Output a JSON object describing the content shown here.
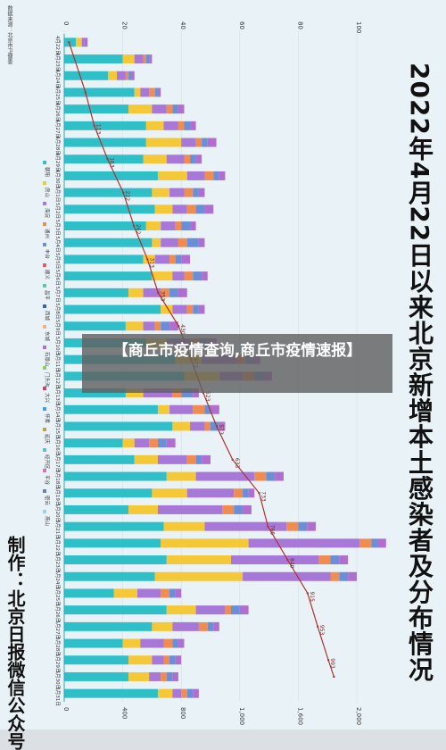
{
  "title": "2022年4月22日以来北京新增本土感染者及分布情况",
  "source": "数据来源：北京市卫健委",
  "maker": "制作：北京日报微信公众号",
  "banner": "【商丘市疫情查询,商丘市疫情速报】",
  "legend": [
    "朝阳",
    "房山",
    "海淀",
    "通州",
    "丰台",
    "顺义",
    "昌平",
    "西城",
    "东城",
    "石景山",
    "门头沟",
    "大兴",
    "怀柔",
    "延庆",
    "经开区",
    "平谷",
    "密云",
    "燕山"
  ],
  "chart_data": {
    "type": "bar",
    "title": "2022年4月22日以来北京新增本土感染者及分布情况",
    "categories": [
      "4月22日",
      "4月23日",
      "4月24日",
      "4月25日",
      "4月26日",
      "4月27日",
      "4月28日",
      "4月29日",
      "4月30日",
      "5月1日",
      "5月2日",
      "5月3日",
      "5月4日",
      "5月5日",
      "5月6日",
      "5月7日",
      "5月8日",
      "5月9日",
      "5月10日",
      "5月11日",
      "5月12日",
      "5月13日",
      "5月14日",
      "5月15日",
      "5月16日",
      "5月17日",
      "5月18日",
      "5月19日",
      "5月20日",
      "5月21日",
      "5月22日",
      "5月23日",
      "5月24日",
      "5月25日",
      "5月26日",
      "5月27日",
      "5月28日",
      "5月29日",
      "5月30日",
      "5月31日"
    ],
    "bar_axis": {
      "ticks": [
        "0",
        "20",
        "40",
        "60",
        "80",
        "100"
      ],
      "ylim": [
        0,
        100
      ]
    },
    "line_axis": {
      "ticks": [
        "0",
        "400",
        "800",
        "1,000",
        "1,600",
        "2,000"
      ]
    },
    "bar_colors": {
      "朝阳": "#2fbfc9",
      "房山": "#f5c838",
      "海淀": "#a878d8",
      "通州": "#f08c50",
      "丰台": "#6a8fd8",
      "顺义": "#e85a6a",
      "昌平": "#5cc8a0",
      "西城": "#3a5fc0",
      "东城": "#ffb070",
      "其他": "#b06fd0"
    },
    "series": [
      {
        "name": "朝阳",
        "values": [
          4,
          20,
          15,
          24,
          22,
          28,
          28,
          27,
          32,
          30,
          31,
          28,
          30,
          27,
          30,
          22,
          33,
          21,
          28,
          38,
          41,
          21,
          32,
          37,
          20,
          24,
          35,
          30,
          22,
          34,
          33,
          35,
          31,
          17,
          35,
          30,
          20,
          22,
          22,
          32
        ]
      },
      {
        "name": "房山",
        "values": [
          2,
          4,
          3,
          2,
          8,
          6,
          12,
          8,
          10,
          6,
          6,
          5,
          3,
          4,
          7,
          5,
          4,
          6,
          7,
          9,
          12,
          6,
          4,
          6,
          4,
          8,
          10,
          12,
          10,
          14,
          30,
          22,
          30,
          8,
          10,
          7,
          6,
          8,
          7,
          5
        ]
      },
      {
        "name": "海淀",
        "values": [
          1,
          3,
          3,
          3,
          5,
          5,
          5,
          6,
          6,
          5,
          5,
          5,
          6,
          5,
          4,
          6,
          5,
          4,
          8,
          12,
          8,
          10,
          8,
          5,
          5,
          10,
          20,
          16,
          22,
          28,
          38,
          30,
          30,
          8,
          10,
          9,
          8,
          4,
          4,
          3
        ]
      },
      {
        "name": "通州",
        "values": [
          0,
          1,
          1,
          2,
          2,
          2,
          2,
          2,
          3,
          3,
          3,
          2,
          3,
          2,
          3,
          3,
          2,
          2,
          3,
          3,
          4,
          3,
          4,
          2,
          3,
          3,
          4,
          3,
          4,
          4,
          4,
          4,
          3,
          3,
          2,
          3,
          3,
          2,
          2,
          2
        ]
      },
      {
        "name": "丰台",
        "values": [
          0,
          1,
          1,
          1,
          2,
          2,
          2,
          2,
          2,
          2,
          3,
          3,
          4,
          2,
          3,
          3,
          2,
          3,
          3,
          2,
          3,
          4,
          2,
          3,
          3,
          2,
          3,
          2,
          3,
          3,
          2,
          3,
          3,
          2,
          3,
          2,
          2,
          2,
          2,
          2
        ]
      },
      {
        "name": "其他",
        "values": [
          1,
          1,
          1,
          1,
          2,
          2,
          3,
          2,
          2,
          2,
          3,
          2,
          2,
          3,
          2,
          3,
          2,
          3,
          3,
          3,
          3,
          2,
          3,
          2,
          3,
          3,
          3,
          2,
          3,
          3,
          3,
          3,
          3,
          2,
          3,
          2,
          2,
          2,
          2,
          2
        ]
      }
    ],
    "line": {
      "name": "累计感染者",
      "points": [
        [
          0,
          18
        ],
        [
          3,
          80
        ],
        [
          5,
          113
        ],
        [
          7,
          163
        ],
        [
          9,
          222
        ],
        [
          11,
          262
        ],
        [
          13,
          313
        ],
        [
          15,
          353
        ],
        [
          17,
          430
        ],
        [
          19,
          477
        ],
        [
          21,
          523
        ],
        [
          23,
          573
        ],
        [
          25,
          633
        ],
        [
          27,
          733
        ],
        [
          29,
          766
        ],
        [
          31,
          840
        ],
        [
          33,
          915
        ],
        [
          35,
          953
        ],
        [
          37,
          993
        ],
        [
          38,
          1014
        ]
      ],
      "labels": [
        {
          "i": 5,
          "text": "113"
        },
        {
          "i": 7,
          "text": "163"
        },
        {
          "i": 9,
          "text": "222"
        },
        {
          "i": 11,
          "text": "262"
        },
        {
          "i": 13,
          "text": "313"
        },
        {
          "i": 15,
          "text": "353"
        },
        {
          "i": 17,
          "text": "430"
        },
        {
          "i": 19,
          "text": "477"
        },
        {
          "i": 21,
          "text": "523"
        },
        {
          "i": 23,
          "text": "573"
        },
        {
          "i": 25,
          "text": "633"
        },
        {
          "i": 27,
          "text": "733"
        },
        {
          "i": 29,
          "text": "766"
        },
        {
          "i": 31,
          "text": "840"
        },
        {
          "i": 33,
          "text": "915"
        },
        {
          "i": 35,
          "text": "953"
        },
        {
          "i": 37,
          "text": "993"
        }
      ]
    },
    "grid": true,
    "legend_position": "left"
  }
}
